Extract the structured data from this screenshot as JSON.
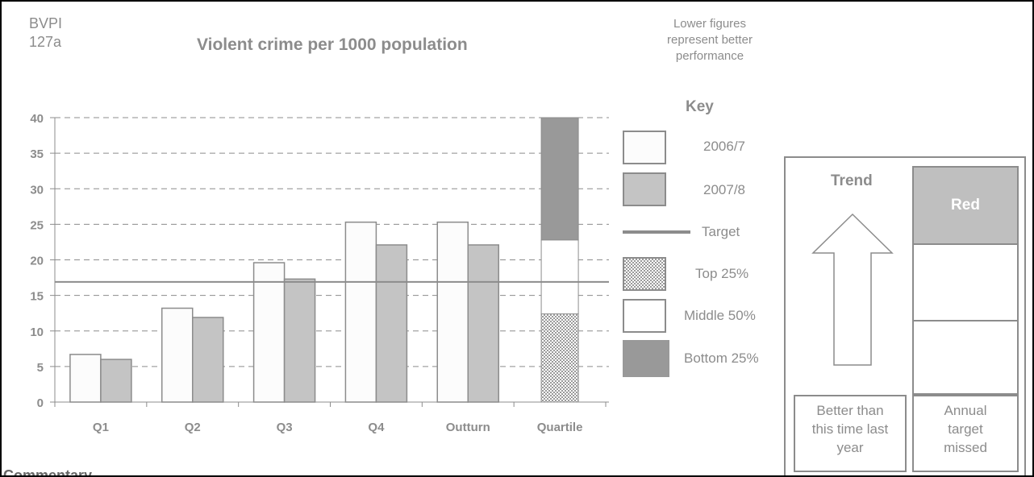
{
  "header": {
    "bvpi_line1": "BVPI",
    "bvpi_line2": "127a",
    "note_line1": "Lower figures",
    "note_line2": "represent better",
    "note_line3": "performance"
  },
  "chart_data": {
    "type": "bar",
    "title": "Violent crime per 1000 population",
    "categories": [
      "Q1",
      "Q2",
      "Q3",
      "Q4",
      "Outturn",
      "Quartile"
    ],
    "series": [
      {
        "name": "2006/7",
        "values": [
          6.7,
          13.2,
          19.6,
          25.3,
          25.3,
          null
        ],
        "color": "#fcfcfc"
      },
      {
        "name": "2007/8",
        "values": [
          6.0,
          11.9,
          17.3,
          22.1,
          22.1,
          null
        ],
        "color": "#c4c4c4"
      }
    ],
    "quartile_bands": [
      {
        "name": "Top 25%",
        "from": 0,
        "to": 12.4,
        "pattern": "checker"
      },
      {
        "name": "Middle 50%",
        "from": 12.4,
        "to": 22.8,
        "color": "#ffffff"
      },
      {
        "name": "Bottom 25%",
        "from": 22.8,
        "to": 40,
        "color": "#999999"
      }
    ],
    "target": 16.9,
    "ylim": [
      0,
      40
    ],
    "yticks": [
      "0",
      "5",
      "10",
      "15",
      "20",
      "25",
      "30",
      "35",
      "40"
    ],
    "grid": "dashed horizontal",
    "legend": "right"
  },
  "key": {
    "title": "Key",
    "items": [
      "2006/7",
      "2007/8",
      "Target",
      "Top 25%",
      "Middle 50%",
      "Bottom 25%"
    ]
  },
  "trend": {
    "label": "Trend",
    "direction": "up-arrow-icon",
    "caption_line1": "Better than",
    "caption_line2": "this time last",
    "caption_line3": "year"
  },
  "status": {
    "label": "Red",
    "color": "#bfbfbf",
    "caption_line1": "Annual",
    "caption_line2": "target",
    "caption_line3": "missed"
  },
  "commentary": {
    "heading": "Commentary"
  }
}
